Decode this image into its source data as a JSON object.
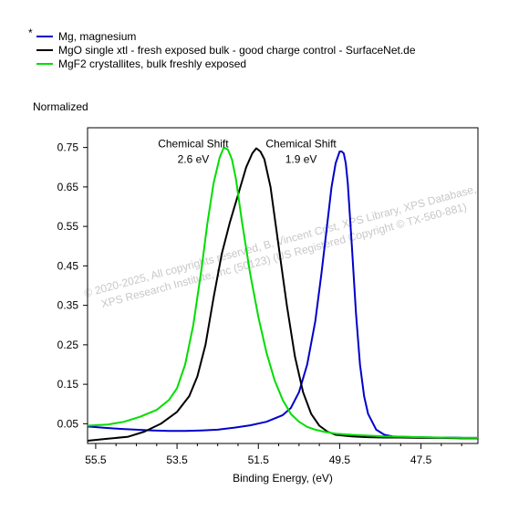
{
  "chart_data": {
    "type": "line",
    "title": "",
    "legend_marker": "*",
    "legend_placement": "top-left",
    "ylabel": "Normalized",
    "xlabel": "Binding Energy, (eV)",
    "x_reversed": true,
    "xlim": [
      55.7,
      46.1
    ],
    "ylim": [
      0.0,
      0.8
    ],
    "x_ticks": [
      55.5,
      53.5,
      51.5,
      49.5,
      47.5
    ],
    "x_tick_labels": [
      "55.5",
      "53.5",
      "51.5",
      "49.5",
      "47.5"
    ],
    "y_ticks": [
      0.05,
      0.15,
      0.25,
      0.35,
      0.45,
      0.55,
      0.65,
      0.75
    ],
    "y_tick_labels": [
      "0.05",
      "0.15",
      "0.25",
      "0.35",
      "0.45",
      "0.55",
      "0.65",
      "0.75"
    ],
    "grid": false,
    "series": [
      {
        "name": "Mg, magnesium",
        "color": "#0000cc",
        "x": [
          55.7,
          55.3,
          54.9,
          54.5,
          54.1,
          53.7,
          53.3,
          52.9,
          52.5,
          52.1,
          51.7,
          51.3,
          50.9,
          50.7,
          50.5,
          50.3,
          50.1,
          49.95,
          49.8,
          49.7,
          49.6,
          49.5,
          49.45,
          49.4,
          49.35,
          49.3,
          49.2,
          49.1,
          49.0,
          48.9,
          48.8,
          48.6,
          48.4,
          48.2,
          48.0,
          47.6,
          47.2,
          46.8,
          46.4,
          46.1
        ],
        "y": [
          0.043,
          0.04,
          0.037,
          0.035,
          0.033,
          0.032,
          0.032,
          0.033,
          0.035,
          0.04,
          0.046,
          0.055,
          0.072,
          0.09,
          0.13,
          0.2,
          0.31,
          0.43,
          0.56,
          0.65,
          0.71,
          0.74,
          0.74,
          0.735,
          0.71,
          0.66,
          0.5,
          0.33,
          0.2,
          0.12,
          0.075,
          0.035,
          0.022,
          0.018,
          0.017,
          0.016,
          0.015,
          0.015,
          0.014,
          0.014
        ]
      },
      {
        "name": "MgO single xtl - fresh exposed bulk - good charge control - SurfaceNet.de",
        "color": "#000000",
        "x": [
          55.7,
          55.2,
          54.7,
          54.3,
          53.9,
          53.5,
          53.2,
          53.0,
          52.8,
          52.6,
          52.4,
          52.2,
          52.0,
          51.8,
          51.65,
          51.55,
          51.45,
          51.35,
          51.2,
          51.0,
          50.8,
          50.6,
          50.4,
          50.2,
          50.0,
          49.8,
          49.6,
          49.2,
          48.8,
          48.4,
          48.0,
          47.5,
          47.0,
          46.5,
          46.1
        ],
        "y": [
          0.007,
          0.012,
          0.017,
          0.03,
          0.05,
          0.08,
          0.12,
          0.17,
          0.25,
          0.37,
          0.48,
          0.56,
          0.63,
          0.7,
          0.735,
          0.748,
          0.74,
          0.72,
          0.65,
          0.5,
          0.35,
          0.22,
          0.13,
          0.075,
          0.045,
          0.03,
          0.022,
          0.018,
          0.016,
          0.015,
          0.015,
          0.014,
          0.014,
          0.013,
          0.013
        ]
      },
      {
        "name": "MgF2 crystallites, bulk freshly exposed",
        "color": "#00dd00",
        "x": [
          55.7,
          55.2,
          54.8,
          54.4,
          54.0,
          53.7,
          53.5,
          53.3,
          53.1,
          52.9,
          52.75,
          52.6,
          52.45,
          52.35,
          52.25,
          52.15,
          52.05,
          51.9,
          51.7,
          51.5,
          51.3,
          51.1,
          50.9,
          50.7,
          50.5,
          50.3,
          50.1,
          49.9,
          49.6,
          49.2,
          48.8,
          48.4,
          48.0,
          47.5,
          47.0,
          46.5,
          46.1
        ],
        "y": [
          0.045,
          0.048,
          0.055,
          0.068,
          0.085,
          0.11,
          0.14,
          0.2,
          0.3,
          0.44,
          0.56,
          0.66,
          0.725,
          0.75,
          0.745,
          0.72,
          0.67,
          0.56,
          0.43,
          0.32,
          0.23,
          0.16,
          0.11,
          0.075,
          0.055,
          0.042,
          0.035,
          0.03,
          0.025,
          0.022,
          0.02,
          0.018,
          0.017,
          0.016,
          0.015,
          0.014,
          0.014
        ]
      }
    ],
    "annotations": [
      {
        "line1": "Chemical Shift",
        "line2": "2.6 eV",
        "x": 53.1,
        "y": 0.75
      },
      {
        "line1": "Chemical Shift",
        "line2": "1.9 eV",
        "x": 50.45,
        "y": 0.75
      }
    ],
    "watermark": {
      "line1": "© 2020-2025,  All copyrights reserved,  B. Vincent Crist,  XPS Library, XPS Database,",
      "line2": "XPS Research Institute, Inc (50123)  (US Registered Copyright © TX-560-881)"
    }
  }
}
